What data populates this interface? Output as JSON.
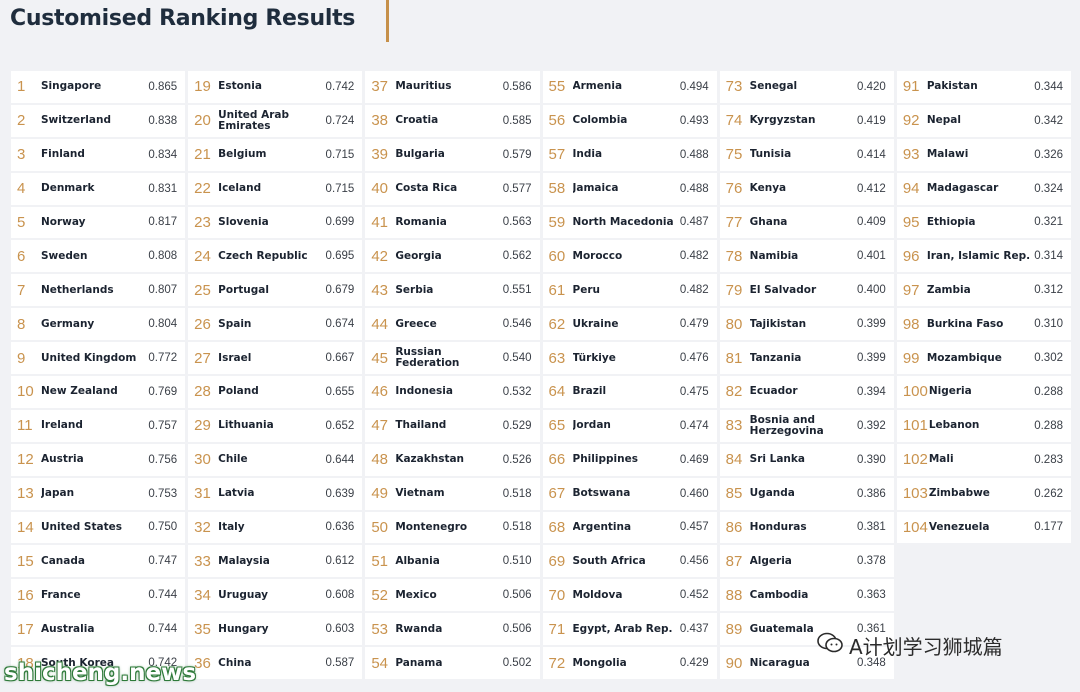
{
  "title": "Customised Ranking Results",
  "colors": {
    "rank": "#c9934e",
    "accent": "#c6904a",
    "row_bg": "#ffffff",
    "page_bg": "#f1f2f5"
  },
  "rankings": [
    {
      "rank": "1",
      "country": "Singapore",
      "score": "0.865"
    },
    {
      "rank": "2",
      "country": "Switzerland",
      "score": "0.838"
    },
    {
      "rank": "3",
      "country": "Finland",
      "score": "0.834"
    },
    {
      "rank": "4",
      "country": "Denmark",
      "score": "0.831"
    },
    {
      "rank": "5",
      "country": "Norway",
      "score": "0.817"
    },
    {
      "rank": "6",
      "country": "Sweden",
      "score": "0.808"
    },
    {
      "rank": "7",
      "country": "Netherlands",
      "score": "0.807"
    },
    {
      "rank": "8",
      "country": "Germany",
      "score": "0.804"
    },
    {
      "rank": "9",
      "country": "United Kingdom",
      "score": "0.772"
    },
    {
      "rank": "10",
      "country": "New Zealand",
      "score": "0.769"
    },
    {
      "rank": "11",
      "country": "Ireland",
      "score": "0.757"
    },
    {
      "rank": "12",
      "country": "Austria",
      "score": "0.756"
    },
    {
      "rank": "13",
      "country": "Japan",
      "score": "0.753"
    },
    {
      "rank": "14",
      "country": "United States",
      "score": "0.750"
    },
    {
      "rank": "15",
      "country": "Canada",
      "score": "0.747"
    },
    {
      "rank": "16",
      "country": "France",
      "score": "0.744"
    },
    {
      "rank": "17",
      "country": "Australia",
      "score": "0.744"
    },
    {
      "rank": "18",
      "country": "South Korea",
      "score": "0.742"
    },
    {
      "rank": "19",
      "country": "Estonia",
      "score": "0.742"
    },
    {
      "rank": "20",
      "country": "United Arab Emirates",
      "score": "0.724"
    },
    {
      "rank": "21",
      "country": "Belgium",
      "score": "0.715"
    },
    {
      "rank": "22",
      "country": "Iceland",
      "score": "0.715"
    },
    {
      "rank": "23",
      "country": "Slovenia",
      "score": "0.699"
    },
    {
      "rank": "24",
      "country": "Czech Republic",
      "score": "0.695"
    },
    {
      "rank": "25",
      "country": "Portugal",
      "score": "0.679"
    },
    {
      "rank": "26",
      "country": "Spain",
      "score": "0.674"
    },
    {
      "rank": "27",
      "country": "Israel",
      "score": "0.667"
    },
    {
      "rank": "28",
      "country": "Poland",
      "score": "0.655"
    },
    {
      "rank": "29",
      "country": "Lithuania",
      "score": "0.652"
    },
    {
      "rank": "30",
      "country": "Chile",
      "score": "0.644"
    },
    {
      "rank": "31",
      "country": "Latvia",
      "score": "0.639"
    },
    {
      "rank": "32",
      "country": "Italy",
      "score": "0.636"
    },
    {
      "rank": "33",
      "country": "Malaysia",
      "score": "0.612"
    },
    {
      "rank": "34",
      "country": "Uruguay",
      "score": "0.608"
    },
    {
      "rank": "35",
      "country": "Hungary",
      "score": "0.603"
    },
    {
      "rank": "36",
      "country": "China",
      "score": "0.587"
    },
    {
      "rank": "37",
      "country": "Mauritius",
      "score": "0.586"
    },
    {
      "rank": "38",
      "country": "Croatia",
      "score": "0.585"
    },
    {
      "rank": "39",
      "country": "Bulgaria",
      "score": "0.579"
    },
    {
      "rank": "40",
      "country": "Costa Rica",
      "score": "0.577"
    },
    {
      "rank": "41",
      "country": "Romania",
      "score": "0.563"
    },
    {
      "rank": "42",
      "country": "Georgia",
      "score": "0.562"
    },
    {
      "rank": "43",
      "country": "Serbia",
      "score": "0.551"
    },
    {
      "rank": "44",
      "country": "Greece",
      "score": "0.546"
    },
    {
      "rank": "45",
      "country": "Russian Federation",
      "score": "0.540"
    },
    {
      "rank": "46",
      "country": "Indonesia",
      "score": "0.532"
    },
    {
      "rank": "47",
      "country": "Thailand",
      "score": "0.529"
    },
    {
      "rank": "48",
      "country": "Kazakhstan",
      "score": "0.526"
    },
    {
      "rank": "49",
      "country": "Vietnam",
      "score": "0.518"
    },
    {
      "rank": "50",
      "country": "Montenegro",
      "score": "0.518"
    },
    {
      "rank": "51",
      "country": "Albania",
      "score": "0.510"
    },
    {
      "rank": "52",
      "country": "Mexico",
      "score": "0.506"
    },
    {
      "rank": "53",
      "country": "Rwanda",
      "score": "0.506"
    },
    {
      "rank": "54",
      "country": "Panama",
      "score": "0.502"
    },
    {
      "rank": "55",
      "country": "Armenia",
      "score": "0.494"
    },
    {
      "rank": "56",
      "country": "Colombia",
      "score": "0.493"
    },
    {
      "rank": "57",
      "country": "India",
      "score": "0.488"
    },
    {
      "rank": "58",
      "country": "Jamaica",
      "score": "0.488"
    },
    {
      "rank": "59",
      "country": "North Macedonia",
      "score": "0.487"
    },
    {
      "rank": "60",
      "country": "Morocco",
      "score": "0.482"
    },
    {
      "rank": "61",
      "country": "Peru",
      "score": "0.482"
    },
    {
      "rank": "62",
      "country": "Ukraine",
      "score": "0.479"
    },
    {
      "rank": "63",
      "country": "Türkiye",
      "score": "0.476"
    },
    {
      "rank": "64",
      "country": "Brazil",
      "score": "0.475"
    },
    {
      "rank": "65",
      "country": "Jordan",
      "score": "0.474"
    },
    {
      "rank": "66",
      "country": "Philippines",
      "score": "0.469"
    },
    {
      "rank": "67",
      "country": "Botswana",
      "score": "0.460"
    },
    {
      "rank": "68",
      "country": "Argentina",
      "score": "0.457"
    },
    {
      "rank": "69",
      "country": "South Africa",
      "score": "0.456"
    },
    {
      "rank": "70",
      "country": "Moldova",
      "score": "0.452"
    },
    {
      "rank": "71",
      "country": "Egypt, Arab Rep.",
      "score": "0.437"
    },
    {
      "rank": "72",
      "country": "Mongolia",
      "score": "0.429"
    },
    {
      "rank": "73",
      "country": "Senegal",
      "score": "0.420"
    },
    {
      "rank": "74",
      "country": "Kyrgyzstan",
      "score": "0.419"
    },
    {
      "rank": "75",
      "country": "Tunisia",
      "score": "0.414"
    },
    {
      "rank": "76",
      "country": "Kenya",
      "score": "0.412"
    },
    {
      "rank": "77",
      "country": "Ghana",
      "score": "0.409"
    },
    {
      "rank": "78",
      "country": "Namibia",
      "score": "0.401"
    },
    {
      "rank": "79",
      "country": "El Salvador",
      "score": "0.400"
    },
    {
      "rank": "80",
      "country": "Tajikistan",
      "score": "0.399"
    },
    {
      "rank": "81",
      "country": "Tanzania",
      "score": "0.399"
    },
    {
      "rank": "82",
      "country": "Ecuador",
      "score": "0.394"
    },
    {
      "rank": "83",
      "country": "Bosnia and Herzegovina",
      "score": "0.392"
    },
    {
      "rank": "84",
      "country": "Sri Lanka",
      "score": "0.390"
    },
    {
      "rank": "85",
      "country": "Uganda",
      "score": "0.386"
    },
    {
      "rank": "86",
      "country": "Honduras",
      "score": "0.381"
    },
    {
      "rank": "87",
      "country": "Algeria",
      "score": "0.378"
    },
    {
      "rank": "88",
      "country": "Cambodia",
      "score": "0.363"
    },
    {
      "rank": "89",
      "country": "Guatemala",
      "score": "0.361"
    },
    {
      "rank": "90",
      "country": "Nicaragua",
      "score": "0.348"
    },
    {
      "rank": "91",
      "country": "Pakistan",
      "score": "0.344"
    },
    {
      "rank": "92",
      "country": "Nepal",
      "score": "0.342"
    },
    {
      "rank": "93",
      "country": "Malawi",
      "score": "0.326"
    },
    {
      "rank": "94",
      "country": "Madagascar",
      "score": "0.324"
    },
    {
      "rank": "95",
      "country": "Ethiopia",
      "score": "0.321"
    },
    {
      "rank": "96",
      "country": "Iran, Islamic Rep.",
      "score": "0.314"
    },
    {
      "rank": "97",
      "country": "Zambia",
      "score": "0.312"
    },
    {
      "rank": "98",
      "country": "Burkina Faso",
      "score": "0.310"
    },
    {
      "rank": "99",
      "country": "Mozambique",
      "score": "0.302"
    },
    {
      "rank": "100",
      "country": "Nigeria",
      "score": "0.288"
    },
    {
      "rank": "101",
      "country": "Lebanon",
      "score": "0.288"
    },
    {
      "rank": "102",
      "country": "Mali",
      "score": "0.283"
    },
    {
      "rank": "103",
      "country": "Zimbabwe",
      "score": "0.262"
    },
    {
      "rank": "104",
      "country": "Venezuela",
      "score": "0.177"
    }
  ],
  "watermark": {
    "icon": "wechat-bubbles-icon",
    "brand_text": "A计划学习狮城篇",
    "site_text": "shicheng.news"
  }
}
